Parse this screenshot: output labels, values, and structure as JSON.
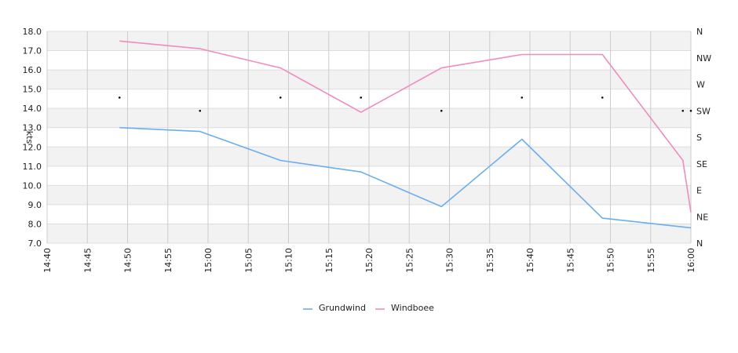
{
  "chart_data": {
    "type": "line",
    "ylabel": "kts",
    "ylim": [
      7,
      18
    ],
    "y_ticks": [
      "7.0",
      "8.0",
      "9.0",
      "10.0",
      "11.0",
      "12.0",
      "13.0",
      "14.0",
      "15.0",
      "16.0",
      "17.0",
      "18.0"
    ],
    "x_range": [
      "14:40",
      "16:00"
    ],
    "x_ticks": [
      "14:40",
      "14:45",
      "14:50",
      "14:55",
      "15:00",
      "15:05",
      "15:10",
      "15:15",
      "15:20",
      "15:25",
      "15:30",
      "15:35",
      "15:40",
      "15:45",
      "15:50",
      "15:55",
      "16:00"
    ],
    "direction_axis_labels": [
      "N",
      "NE",
      "E",
      "SE",
      "S",
      "SW",
      "W",
      "NW",
      "N"
    ],
    "series": [
      {
        "name": "Grundwind",
        "color": "#6aaef0",
        "points": [
          {
            "x": "14:49",
            "y": 13.0
          },
          {
            "x": "14:59",
            "y": 12.8
          },
          {
            "x": "15:09",
            "y": 11.3
          },
          {
            "x": "15:19",
            "y": 10.7
          },
          {
            "x": "15:29",
            "y": 8.9
          },
          {
            "x": "15:39",
            "y": 12.4
          },
          {
            "x": "15:49",
            "y": 8.3
          },
          {
            "x": "16:00",
            "y": 7.8
          }
        ]
      },
      {
        "name": "Windboee",
        "color": "#f08cbf",
        "points": [
          {
            "x": "14:49",
            "y": 17.5
          },
          {
            "x": "14:59",
            "y": 17.1
          },
          {
            "x": "15:09",
            "y": 16.1
          },
          {
            "x": "15:19",
            "y": 13.8
          },
          {
            "x": "15:29",
            "y": 16.1
          },
          {
            "x": "15:39",
            "y": 16.8
          },
          {
            "x": "15:49",
            "y": 16.8
          },
          {
            "x": "15:59",
            "y": 11.3
          },
          {
            "x": "16:00",
            "y": 8.6
          }
        ]
      }
    ],
    "direction_points": [
      {
        "x": "14:49",
        "dir": "WSW"
      },
      {
        "x": "14:59",
        "dir": "SW"
      },
      {
        "x": "15:09",
        "dir": "WSW"
      },
      {
        "x": "15:19",
        "dir": "WSW"
      },
      {
        "x": "15:29",
        "dir": "SW"
      },
      {
        "x": "15:39",
        "dir": "WSW"
      },
      {
        "x": "15:49",
        "dir": "WSW"
      },
      {
        "x": "15:59",
        "dir": "SW"
      },
      {
        "x": "16:00",
        "dir": "SW"
      }
    ],
    "legend_position": "bottom-center",
    "grid": true
  }
}
